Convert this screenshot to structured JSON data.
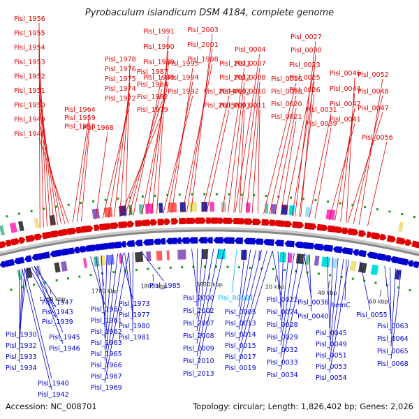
{
  "title": "Pyrobaculum islandicum DSM 4184, complete genome",
  "footer": {
    "accession": "Accession: NC_008701",
    "summary": "Topology: circular; Length: 1,826,402 bp; Genes: 2,026"
  },
  "colors": {
    "forward": "#e00000",
    "reverse": "#0000d0",
    "highlight": "#00b4ff",
    "backbone": "#888888",
    "tick": "#1a9a1a",
    "tick_label": "#333333"
  },
  "ticks": [
    {
      "label": "1760 kbp"
    },
    {
      "label": "1780 kbp"
    },
    {
      "label": "1800 kbp"
    },
    {
      "label": "1820 kbp"
    },
    {
      "label": "20 kbp"
    },
    {
      "label": "40 kbp"
    },
    {
      "label": "60 kbp"
    }
  ],
  "forward_genes": [
    "Pisl_1956",
    "Pisl_1955",
    "Pisl_1954",
    "Pisl_1953",
    "Pisl_1952",
    "Pisl_1951",
    "Pisl_1950",
    "Pisl_1949",
    "Pisl_1948",
    "Pisl_1964",
    "Pisl_1959",
    "Pisl_1958",
    "Pisl_1968",
    "Pisl_1972",
    "Pisl_1974",
    "Pisl_1975",
    "Pisl_1976",
    "Pisl_1978",
    "Pisl_1979",
    "Pisl_1982",
    "Pisl_1984",
    "Pisl_1987",
    "Pisl_1988",
    "Pisl_1989",
    "Pisl_1990",
    "Pisl_1991",
    "Pisl_1992",
    "Pisl_1994",
    "Pisl_1995",
    "Pisl_1998",
    "Pisl_2001",
    "Pisl_2003",
    "Pisl_2004",
    "Pisl_2005",
    "Pisl_2011",
    "Pisl_2012",
    "Pisl_0002",
    "Pisl_0001",
    "Pisl_0004",
    "Pisl_0007",
    "Pisl_0008",
    "Pisl_0010",
    "Pisl_0011",
    "Pisl_0016",
    "Pisl_0018",
    "Pisl_0020",
    "Pisl_0021",
    "Pisl_0023",
    "Pisl_0025",
    "Pisl_0026",
    "Pisl_0027",
    "Pisl_0030",
    "Pisl_0031",
    "Pisl_0039",
    "Pisl_0041",
    "Pisl_0042",
    "Pisl_0044",
    "Pisl_0046",
    "Pisl_0047",
    "Pisl_0048",
    "Pisl_0052",
    "Pisl_0056"
  ],
  "reverse_genes": [
    "Pisl_1947",
    "Pisl_1943",
    "Pisl_1939",
    "Pisl_1930",
    "Pisl_1932",
    "Pisl_1933",
    "Pisl_1934",
    "Pisl_1940",
    "Pisl_1942",
    "Pisl_1945",
    "Pisl_1946",
    "Pisl_1960",
    "Pisl_1961",
    "Pisl_1962",
    "Pisl_1963",
    "Pisl_1965",
    "Pisl_1966",
    "Pisl_1967",
    "Pisl_1969",
    "Pisl_1973",
    "Pisl_1977",
    "Pisl_1980",
    "Pisl_1981",
    "Pisl_1985",
    "Pisl_2000",
    "Pisl_2002",
    "Pisl_2007",
    "Pisl_2008",
    "Pisl_2009",
    "Pisl_2010",
    "Pisl_2013",
    "Pisl_R0001",
    "Pisl_0005",
    "Pisl_0013",
    "Pisl_0014",
    "Pisl_0015",
    "Pisl_0017",
    "Pisl_0019",
    "Pisl_0022",
    "Pisl_0024",
    "Pisl_0028",
    "Pisl_0029",
    "Pisl_0032",
    "Pisl_0033",
    "Pisl_0034",
    "Pisl_0036",
    "Pisl_0040",
    "hemC",
    "Pisl_0045",
    "Pisl_0049",
    "Pisl_0051",
    "Pisl_0053",
    "Pisl_0054",
    "Pisl_0055",
    "Pisl_0063",
    "Pisl_0064",
    "Pisl_0065",
    "Pisl_0068"
  ]
}
